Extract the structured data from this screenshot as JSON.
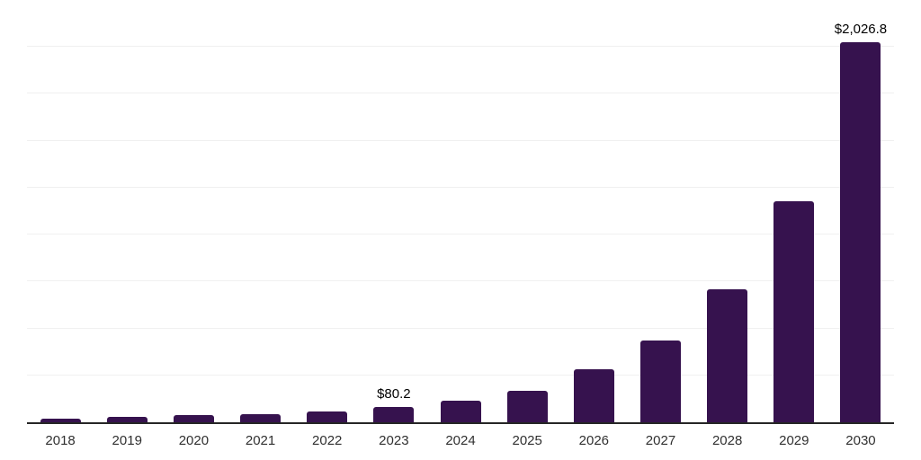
{
  "chart_data": {
    "type": "bar",
    "title": "",
    "xlabel": "",
    "ylabel": "",
    "categories": [
      "2018",
      "2019",
      "2020",
      "2021",
      "2022",
      "2023",
      "2024",
      "2025",
      "2026",
      "2027",
      "2028",
      "2029",
      "2030"
    ],
    "values": [
      20,
      27,
      37,
      43,
      59,
      80.2,
      116,
      170,
      283,
      437,
      710,
      1178,
      2026.8
    ],
    "value_labels": {
      "2023": "$80.2",
      "2030": "$2,026.8"
    },
    "ylim": [
      0,
      2250
    ],
    "gridline_interval": 250,
    "grid": "horizontal",
    "legend": "none",
    "currency_prefix": "$"
  },
  "colors": {
    "bar": "#36124E",
    "axis": "#262626",
    "gridline": "#F0F0F0",
    "tick_label": "#303030",
    "value_label": "#000000",
    "background": "#FFFFFF"
  }
}
